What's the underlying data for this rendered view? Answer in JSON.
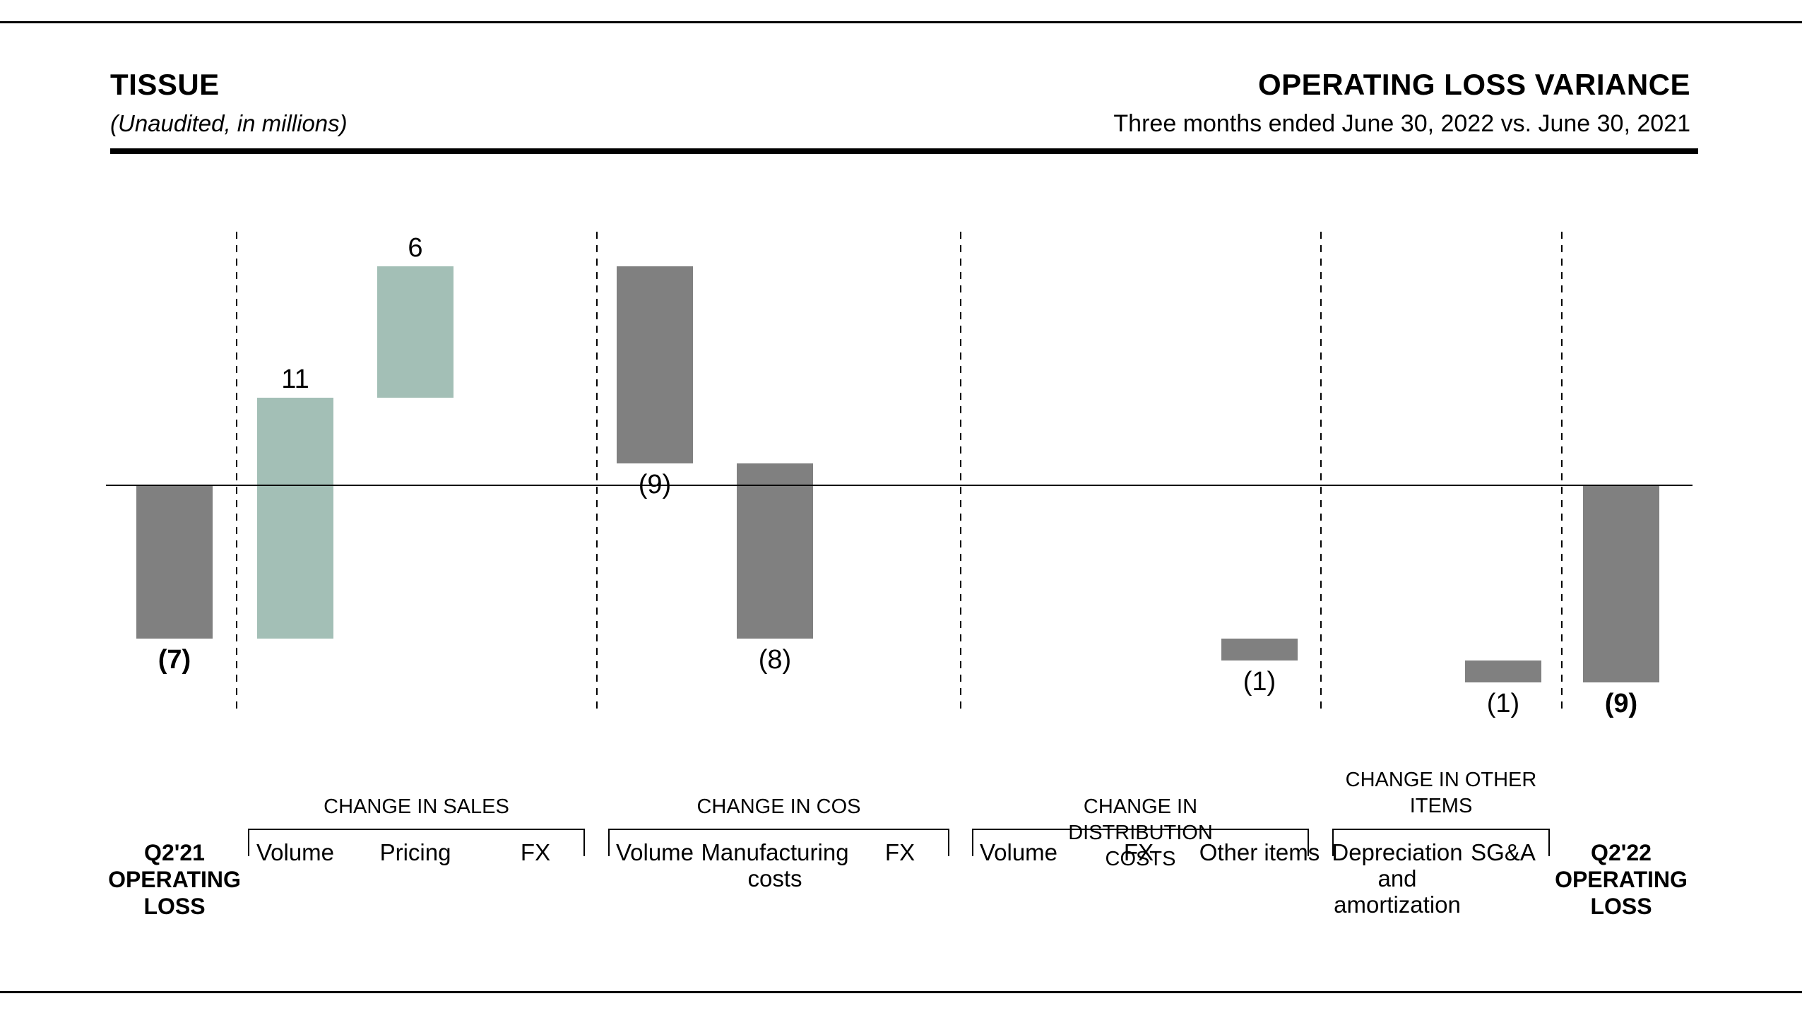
{
  "header": {
    "segment": "TISSUE",
    "note": "(Unaudited, in millions)",
    "title": "OPERATING LOSS VARIANCE",
    "subtitle": "Three months ended June 30, 2022 vs. June 30, 2021"
  },
  "colors": {
    "increase": "#a3bfb6",
    "decrease": "#808080",
    "total": "#808080",
    "text": "#000000"
  },
  "chart_data": {
    "type": "bar",
    "subtype": "waterfall",
    "title": "OPERATING LOSS VARIANCE",
    "subtitle": "Three months ended June 30, 2022 vs. June 30, 2021",
    "units": "millions",
    "baseline": 0,
    "bars": [
      {
        "label": "Q2'21 OPERATING LOSS",
        "value": -7,
        "display": "(7)",
        "kind": "total",
        "bold": true
      },
      {
        "label": "Volume",
        "value": 11,
        "display": "11",
        "kind": "delta",
        "group": 0
      },
      {
        "label": "Pricing",
        "value": 6,
        "display": "6",
        "kind": "delta",
        "group": 0
      },
      {
        "label": "FX",
        "value": 0,
        "display": "",
        "kind": "delta",
        "group": 0
      },
      {
        "label": "Volume",
        "value": -9,
        "display": "(9)",
        "kind": "delta",
        "group": 1
      },
      {
        "label": "Manufacturing costs",
        "value": -8,
        "display": "(8)",
        "kind": "delta",
        "group": 1
      },
      {
        "label": "FX",
        "value": 0,
        "display": "",
        "kind": "delta",
        "group": 1
      },
      {
        "label": "Volume",
        "value": 0,
        "display": "",
        "kind": "delta",
        "group": 2
      },
      {
        "label": "FX",
        "value": 0,
        "display": "",
        "kind": "delta",
        "group": 2
      },
      {
        "label": "Other items",
        "value": -1,
        "display": "(1)",
        "kind": "delta",
        "group": 2
      },
      {
        "label": "Depreciation and amortization",
        "value": 0,
        "display": "",
        "kind": "delta",
        "group": 3
      },
      {
        "label": "SG&A",
        "value": -1,
        "display": "(1)",
        "kind": "delta",
        "group": 3
      },
      {
        "label": "Q2'22 OPERATING LOSS",
        "value": -9,
        "display": "(9)",
        "kind": "total",
        "bold": true
      }
    ],
    "groups": [
      {
        "title": "CHANGE IN SALES"
      },
      {
        "title": "CHANGE IN COS"
      },
      {
        "title": "CHANGE IN DISTRIBUTION COSTS"
      },
      {
        "title": "CHANGE IN OTHER ITEMS"
      }
    ]
  }
}
